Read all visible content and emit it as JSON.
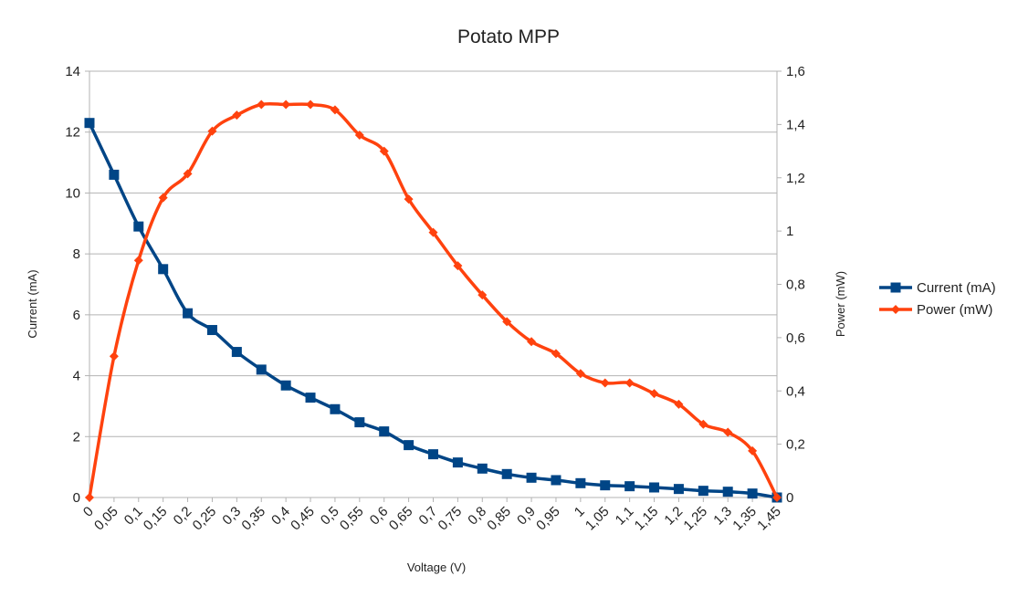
{
  "chart_data": {
    "type": "line",
    "title": "Potato MPP",
    "xlabel": "Voltage (V)",
    "ylabel_left": "Current (mA)",
    "ylabel_right": "Power (mW)",
    "x": [
      "0",
      "0,05",
      "0,1",
      "0,15",
      "0,2",
      "0,25",
      "0,3",
      "0,35",
      "0,4",
      "0,45",
      "0,5",
      "0,55",
      "0,6",
      "0,65",
      "0,7",
      "0,75",
      "0,8",
      "0,85",
      "0,9",
      "0,95",
      "1",
      "1,05",
      "1,1",
      "1,15",
      "1,2",
      "1,25",
      "1,3",
      "1,35",
      "1,45"
    ],
    "ylim_left": [
      0,
      14
    ],
    "yticks_left": [
      "0",
      "2",
      "4",
      "6",
      "8",
      "10",
      "12",
      "14"
    ],
    "ylim_right": [
      0,
      1.6
    ],
    "yticks_right": [
      "0",
      "0,2",
      "0,4",
      "0,6",
      "0,8",
      "1",
      "1,2",
      "1,4",
      "1,6"
    ],
    "legend_position": "right",
    "grid": true,
    "series": [
      {
        "name": "Current (mA)",
        "axis": "left",
        "color": "#004586",
        "marker": "square",
        "values": [
          12.3,
          10.6,
          8.9,
          7.5,
          6.05,
          5.5,
          4.78,
          4.2,
          3.68,
          3.28,
          2.9,
          2.47,
          2.17,
          1.72,
          1.42,
          1.15,
          0.95,
          0.77,
          0.65,
          0.57,
          0.47,
          0.4,
          0.37,
          0.33,
          0.28,
          0.22,
          0.19,
          0.13,
          0
        ]
      },
      {
        "name": "Power (mW)",
        "axis": "right",
        "color": "#ff420e",
        "marker": "diamond",
        "values": [
          0,
          0.53,
          0.89,
          1.125,
          1.215,
          1.375,
          1.435,
          1.475,
          1.475,
          1.475,
          1.455,
          1.36,
          1.3,
          1.12,
          0.995,
          0.87,
          0.76,
          0.66,
          0.585,
          0.54,
          0.465,
          0.43,
          0.43,
          0.39,
          0.35,
          0.275,
          0.245,
          0.175,
          0
        ]
      }
    ]
  }
}
